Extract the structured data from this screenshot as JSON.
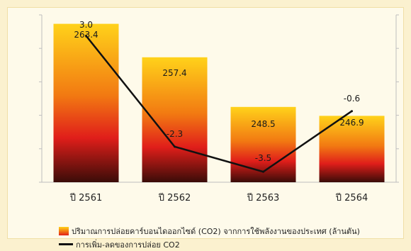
{
  "chart_data": {
    "type": "bar",
    "categories": [
      "ปี 2561",
      "ปี 2562",
      "ปี 2563",
      "ปี 2564"
    ],
    "series": [
      {
        "name": "ปริมาณการปล่อยคาร์บอนไดออกไซด์ (CO2) จากการใช้พลังงานของประเทศ (ล้านตัน)",
        "type": "bar",
        "values": [
          263.4,
          257.4,
          248.5,
          246.9
        ],
        "labels": [
          "263.4",
          "257.4",
          "248.5",
          "246.9"
        ]
      },
      {
        "name": "การเพิ่ม-ลดของการปล่อย CO2",
        "type": "line",
        "values": [
          3.0,
          -2.3,
          -3.5,
          -0.6
        ],
        "labels": [
          "3.0",
          "-2.3",
          "-3.5",
          "-0.6"
        ]
      }
    ],
    "bar_axis_range": [
      235,
      265
    ],
    "line_axis_range": [
      -4,
      4
    ],
    "grid": false,
    "legend_position": "bottom"
  },
  "colors": {
    "bar_top": "#ffd21a",
    "bar_mid": "#f27a12",
    "bar_low": "#e01e1a",
    "bar_bottom": "#3a0c08",
    "line": "#111111",
    "axis": "#bfbfbf"
  }
}
